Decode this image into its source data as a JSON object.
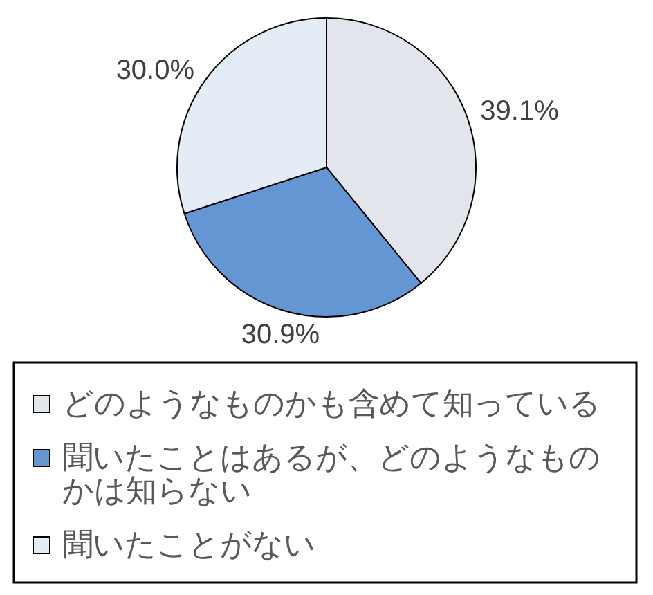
{
  "chart_data": {
    "type": "pie",
    "categories": [
      "どのようなものかも含めて知っている",
      "聞いたことはあるが、どのようなものかは知らない",
      "聞いたことがない"
    ],
    "values": [
      39.1,
      30.9,
      30.0
    ],
    "colors": [
      "#e2e6ec",
      "#6496d4",
      "#e4ecf6"
    ],
    "value_labels": [
      "39.1%",
      "30.9%",
      "30.0%"
    ],
    "legend": "bottom"
  }
}
